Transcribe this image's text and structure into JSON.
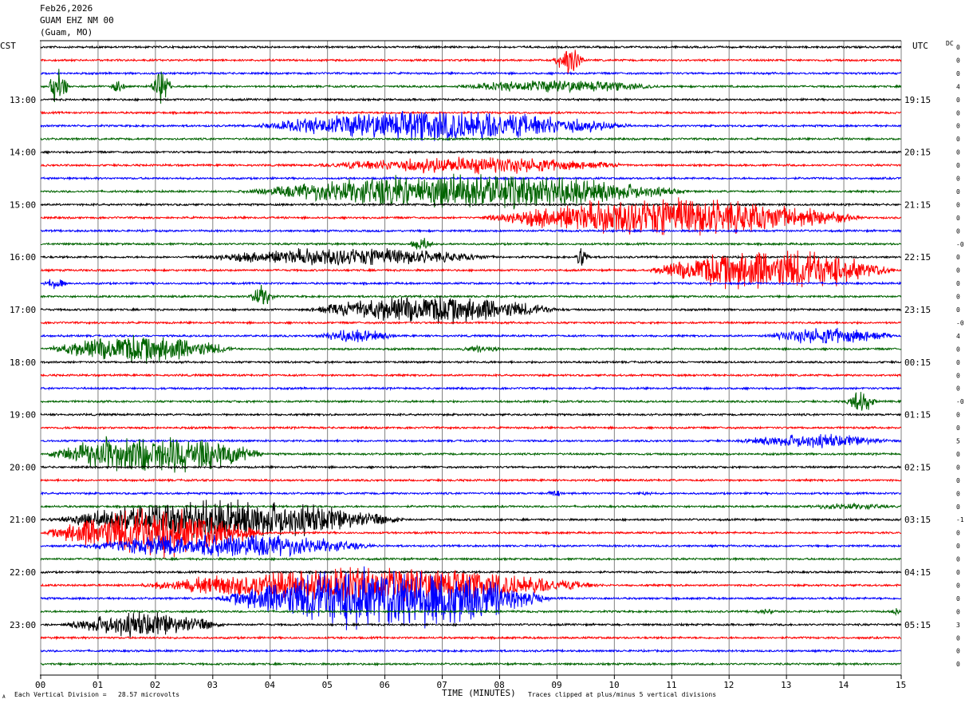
{
  "header": {
    "date": "Feb26,2026",
    "station": "GUAM EHZ NM 00",
    "location": "(Guam, MO)"
  },
  "axes": {
    "left_zone": "CST",
    "right_zone": "UTC",
    "dc_label": "DC",
    "xlabel": "TIME (MINUTES)"
  },
  "footer": {
    "scale_note": "Each Vertical Division =   28.57 microvolts",
    "clip_note": "Traces clipped at plus/minus 5 vertical divisions",
    "corner_mark": "A"
  },
  "colors": {
    "trace_cycle": [
      "#000000",
      "#ff0000",
      "#0000ff",
      "#006400"
    ],
    "grid": "#808080"
  },
  "chart_data": {
    "type": "line",
    "title": "",
    "x_ticks": [
      "00",
      "01",
      "02",
      "03",
      "04",
      "05",
      "06",
      "07",
      "08",
      "09",
      "10",
      "11",
      "12",
      "13",
      "14",
      "15"
    ],
    "xlim": [
      0,
      15
    ],
    "trace_count": 48,
    "left_time_labels": [
      {
        "row": 4,
        "text": "13:00"
      },
      {
        "row": 8,
        "text": "14:00"
      },
      {
        "row": 12,
        "text": "15:00"
      },
      {
        "row": 16,
        "text": "16:00"
      },
      {
        "row": 20,
        "text": "17:00"
      },
      {
        "row": 24,
        "text": "18:00"
      },
      {
        "row": 28,
        "text": "19:00"
      },
      {
        "row": 32,
        "text": "20:00"
      },
      {
        "row": 36,
        "text": "21:00"
      },
      {
        "row": 40,
        "text": "22:00"
      },
      {
        "row": 44,
        "text": "23:00"
      }
    ],
    "right_time_labels": [
      {
        "row": 4,
        "text": "19:15"
      },
      {
        "row": 8,
        "text": "20:15"
      },
      {
        "row": 12,
        "text": "21:15"
      },
      {
        "row": 16,
        "text": "22:15"
      },
      {
        "row": 20,
        "text": "23:15"
      },
      {
        "row": 24,
        "text": "00:15"
      },
      {
        "row": 28,
        "text": "01:15"
      },
      {
        "row": 32,
        "text": "02:15"
      },
      {
        "row": 36,
        "text": "03:15"
      },
      {
        "row": 40,
        "text": "04:15"
      },
      {
        "row": 44,
        "text": "05:15"
      }
    ],
    "dc_offsets": [
      "0",
      "0",
      "0",
      "4",
      "0",
      "0",
      "0",
      "0",
      "0",
      "0",
      "0",
      "0",
      "0",
      "0",
      "0",
      "-0",
      "0",
      "0",
      "0",
      "0",
      "0",
      "-0",
      "4",
      "0",
      "0",
      "0",
      "0",
      "-0",
      "0",
      "0",
      "5",
      "0",
      "0",
      "0",
      "0",
      "0",
      "-1",
      "0",
      "0",
      "0",
      "0",
      "0",
      "0",
      "0",
      "3",
      "0",
      "0",
      "0"
    ],
    "events": [
      {
        "row": 1,
        "start": 8.9,
        "end": 9.5,
        "amp": 2.0
      },
      {
        "row": 3,
        "start": 0.1,
        "end": 0.5,
        "amp": 2.5
      },
      {
        "row": 3,
        "start": 1.2,
        "end": 1.5,
        "amp": 1.0
      },
      {
        "row": 3,
        "start": 1.9,
        "end": 2.3,
        "amp": 2.5
      },
      {
        "row": 3,
        "start": 7.0,
        "end": 11.0,
        "amp": 0.9
      },
      {
        "row": 6,
        "start": 3.5,
        "end": 10.5,
        "amp": 2.2
      },
      {
        "row": 9,
        "start": 4.5,
        "end": 10.5,
        "amp": 1.2
      },
      {
        "row": 11,
        "start": 3.3,
        "end": 11.5,
        "amp": 2.5
      },
      {
        "row": 13,
        "start": 7.5,
        "end": 14.5,
        "amp": 2.8
      },
      {
        "row": 15,
        "start": 6.4,
        "end": 6.9,
        "amp": 1.0
      },
      {
        "row": 16,
        "start": 2.5,
        "end": 8.2,
        "amp": 1.3
      },
      {
        "row": 16,
        "start": 9.3,
        "end": 9.6,
        "amp": 1.6
      },
      {
        "row": 17,
        "start": 10.5,
        "end": 15.0,
        "amp": 3.0
      },
      {
        "row": 18,
        "start": 0.0,
        "end": 0.5,
        "amp": 0.8
      },
      {
        "row": 19,
        "start": 3.6,
        "end": 4.1,
        "amp": 1.6
      },
      {
        "row": 20,
        "start": 4.5,
        "end": 9.2,
        "amp": 2.0
      },
      {
        "row": 22,
        "start": 4.7,
        "end": 6.3,
        "amp": 0.9
      },
      {
        "row": 22,
        "start": 12.5,
        "end": 15.0,
        "amp": 1.2
      },
      {
        "row": 23,
        "start": 0.0,
        "end": 3.5,
        "amp": 2.0
      },
      {
        "row": 23,
        "start": 7.2,
        "end": 8.2,
        "amp": 0.5
      },
      {
        "row": 27,
        "start": 14.0,
        "end": 14.6,
        "amp": 1.6
      },
      {
        "row": 30,
        "start": 12.0,
        "end": 15.0,
        "amp": 1.0
      },
      {
        "row": 31,
        "start": 0.0,
        "end": 4.0,
        "amp": 3.0
      },
      {
        "row": 34,
        "start": 8.8,
        "end": 9.1,
        "amp": 0.6
      },
      {
        "row": 34,
        "start": 10.3,
        "end": 10.8,
        "amp": 0.3
      },
      {
        "row": 35,
        "start": 13.2,
        "end": 15.0,
        "amp": 0.5
      },
      {
        "row": 36,
        "start": 0.0,
        "end": 6.5,
        "amp": 2.8
      },
      {
        "row": 37,
        "start": 0.0,
        "end": 4.0,
        "amp": 3.5
      },
      {
        "row": 38,
        "start": 0.5,
        "end": 6.0,
        "amp": 1.8
      },
      {
        "row": 41,
        "start": 1.5,
        "end": 10.0,
        "amp": 2.5
      },
      {
        "row": 42,
        "start": 3.0,
        "end": 9.0,
        "amp": 4.5
      },
      {
        "row": 43,
        "start": 12.4,
        "end": 12.9,
        "amp": 0.4
      },
      {
        "row": 43,
        "start": 14.8,
        "end": 15.0,
        "amp": 0.6
      },
      {
        "row": 44,
        "start": 0.3,
        "end": 3.3,
        "amp": 1.8
      }
    ]
  }
}
